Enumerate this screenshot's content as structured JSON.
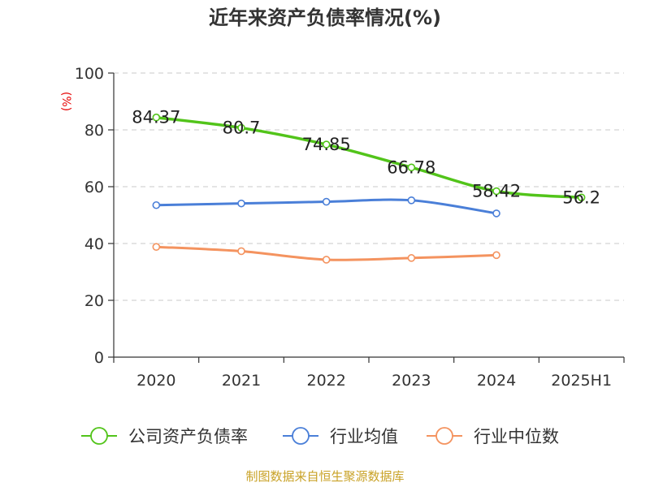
{
  "chart_data": {
    "type": "line",
    "title": "近年来资产负债率情况(%)",
    "unit_label": "(%)",
    "categories": [
      "2020",
      "2021",
      "2022",
      "2023",
      "2024",
      "2025H1"
    ],
    "ylim": [
      0,
      100
    ],
    "yticks": [
      0,
      20,
      40,
      60,
      80,
      100
    ],
    "grid": true,
    "legend_position": "bottom",
    "series": [
      {
        "name": "公司资产负债率",
        "color": "#52c41a",
        "values": [
          84.37,
          80.7,
          74.85,
          66.78,
          58.42,
          56.2
        ],
        "labels": [
          "84.37",
          "80.7",
          "74.85",
          "66.78",
          "58.42",
          "56.2"
        ]
      },
      {
        "name": "行业均值",
        "color": "#4a7fd8",
        "values": [
          53.5,
          54.1,
          54.7,
          55.2,
          50.6,
          null
        ]
      },
      {
        "name": "行业中位数",
        "color": "#f4935f",
        "values": [
          38.8,
          37.3,
          34.3,
          34.9,
          35.9,
          null
        ]
      }
    ]
  },
  "source": "制图数据来自恒生聚源数据库"
}
